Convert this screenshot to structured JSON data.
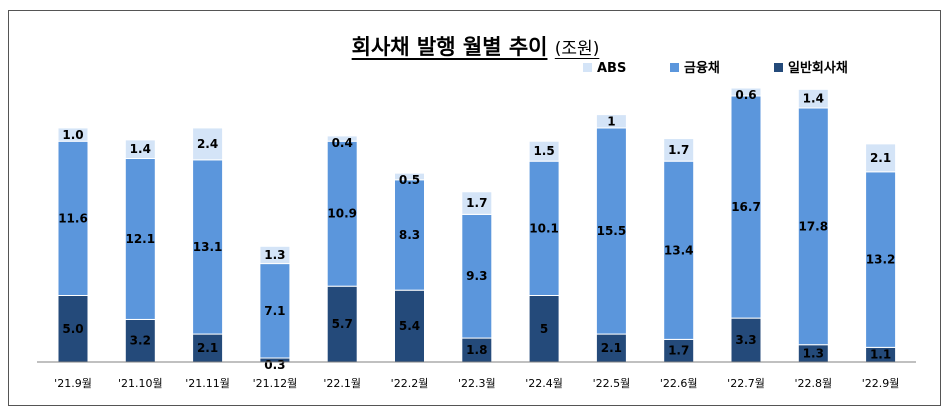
{
  "title": {
    "main": "회사채 발행 월별 추이",
    "unit": "(조원)"
  },
  "colors": {
    "ABS": "#d4e4f7",
    "금융채": "#5b96dc",
    "일반회사채": "#244a7a"
  },
  "chart_data": {
    "type": "bar",
    "stacked": true,
    "title": "회사채 발행 월별 추이",
    "ylabel": "(조원)",
    "legend_position": "top-right",
    "grid": false,
    "categories": [
      "'21.9월",
      "'21.10월",
      "'21.11월",
      "'21.12월",
      "'22.1월",
      "'22.2월",
      "'22.3월",
      "'22.4월",
      "'22.5월",
      "'22.6월",
      "'22.7월",
      "'22.8월",
      "'22.9월"
    ],
    "series": [
      {
        "name": "일반회사채",
        "values": [
          5.0,
          3.2,
          2.1,
          0.3,
          5.7,
          5.4,
          1.8,
          5,
          2.1,
          1.7,
          3.3,
          1.3,
          1.1
        ],
        "labels": [
          "5.0",
          "3.2",
          "2.1",
          "0.3",
          "5.7",
          "5.4",
          "1.8",
          "5",
          "2.1",
          "1.7",
          "3.3",
          "1.3",
          "1.1"
        ]
      },
      {
        "name": "금융채",
        "values": [
          11.6,
          12.1,
          13.1,
          7.1,
          10.9,
          8.3,
          9.3,
          10.1,
          15.5,
          13.4,
          16.7,
          17.8,
          13.2
        ],
        "labels": [
          "11.6",
          "12.1",
          "13.1",
          "7.1",
          "10.9",
          "8.3",
          "9.3",
          "10.1",
          "15.5",
          "13.4",
          "16.7",
          "17.8",
          "13.2"
        ]
      },
      {
        "name": "ABS",
        "values": [
          1.0,
          1.4,
          2.4,
          1.3,
          0.4,
          0.5,
          1.7,
          1.5,
          1,
          1.7,
          0.6,
          1.4,
          2.1
        ],
        "labels": [
          "1.0",
          "1.4",
          "2.4",
          "1.3",
          "0.4",
          "0.5",
          "1.7",
          "1.5",
          "1",
          "1.7",
          "0.6",
          "1.4",
          "2.1"
        ]
      }
    ],
    "legend": [
      "ABS",
      "금융채",
      "일반회사채"
    ]
  }
}
